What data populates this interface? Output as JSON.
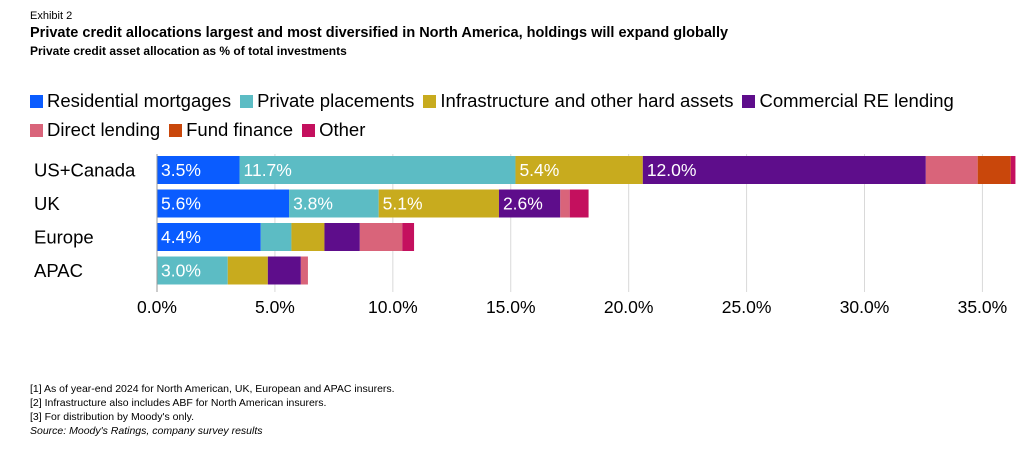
{
  "header": {
    "exhibit": "Exhibit 2",
    "title": "Private credit allocations largest and most diversified in North America, holdings will expand globally",
    "subtitle": "Private credit asset allocation as % of total investments"
  },
  "chart_data": {
    "type": "bar",
    "orientation": "horizontal",
    "stacked": true,
    "categories": [
      "US+Canada",
      "UK",
      "Europe",
      "APAC"
    ],
    "series": [
      {
        "name": "Residential mortgages",
        "color": "#0a5cff",
        "values": [
          3.5,
          5.6,
          4.4,
          0.0
        ],
        "labels": [
          "3.5%",
          "5.6%",
          "4.4%",
          ""
        ]
      },
      {
        "name": "Private placements",
        "color": "#5cbcc4",
        "values": [
          11.7,
          3.8,
          1.3,
          3.0
        ],
        "labels": [
          "11.7%",
          "3.8%",
          "",
          "3.0%"
        ]
      },
      {
        "name": "Infrastructure and other hard assets",
        "color": "#c8ab1e",
        "values": [
          5.4,
          5.1,
          1.4,
          1.7
        ],
        "labels": [
          "5.4%",
          "5.1%",
          "",
          ""
        ]
      },
      {
        "name": "Commercial RE lending",
        "color": "#5e0d8b",
        "values": [
          12.0,
          2.6,
          1.5,
          1.4
        ],
        "labels": [
          "12.0%",
          "2.6%",
          "",
          ""
        ]
      },
      {
        "name": "Direct lending",
        "color": "#d9647a",
        "values": [
          2.2,
          0.4,
          1.8,
          0.3
        ],
        "labels": [
          "",
          "",
          "",
          ""
        ]
      },
      {
        "name": "Fund finance",
        "color": "#c9470b",
        "values": [
          1.4,
          0.0,
          0.0,
          0.0
        ],
        "labels": [
          "",
          "",
          "",
          ""
        ]
      },
      {
        "name": "Other",
        "color": "#c4105e",
        "values": [
          0.2,
          0.8,
          0.5,
          0.0
        ],
        "labels": [
          "",
          "",
          "",
          ""
        ]
      }
    ],
    "xlim": [
      0,
      36
    ],
    "xticks": [
      0,
      5,
      10,
      15,
      20,
      25,
      30,
      35
    ],
    "xtick_labels": [
      "0.0%",
      "5.0%",
      "10.0%",
      "15.0%",
      "20.0%",
      "25.0%",
      "30.0%",
      "35.0%"
    ],
    "grid": "vertical",
    "legend": "top"
  },
  "footnotes": [
    "[1] As of year-end 2024 for North American, UK, European and APAC insurers.",
    "[2] Infrastructure also includes ABF for North American insurers.",
    "[3] For distribution by Moody's only."
  ],
  "source": "Source: Moody's Ratings, company survey results"
}
